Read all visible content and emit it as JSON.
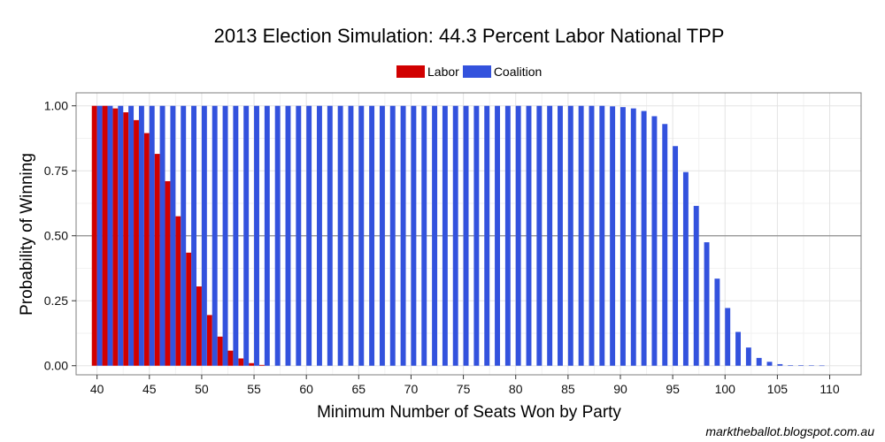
{
  "chart_data": {
    "type": "bar",
    "title": "2013 Election Simulation: 44.3 Percent Labor National TPP",
    "xlabel": "Minimum Number of Seats Won by Party",
    "ylabel": "Probability of Winning",
    "xlim": [
      38,
      113
    ],
    "ylim": [
      -0.035,
      1.05
    ],
    "x_ticks": [
      40,
      45,
      50,
      55,
      60,
      65,
      70,
      75,
      80,
      85,
      90,
      95,
      100,
      105,
      110
    ],
    "x_tick_labels": [
      "40",
      "45",
      "50",
      "55",
      "60",
      "65",
      "70",
      "75",
      "80",
      "85",
      "90",
      "95",
      "100",
      "105",
      "110"
    ],
    "y_ticks": [
      0,
      0.25,
      0.5,
      0.75,
      1.0
    ],
    "y_tick_labels": [
      "0.00",
      "0.25",
      "0.50",
      "0.75",
      "1.00"
    ],
    "reference_line_y": 0.5,
    "grid": true,
    "legend_position": "top",
    "series": [
      {
        "name": "Labor",
        "color": "#d10000",
        "x": [
          40,
          41,
          42,
          43,
          44,
          45,
          46,
          47,
          48,
          49,
          50,
          51,
          52,
          53,
          54,
          55,
          56
        ],
        "values": [
          1.0,
          1.0,
          0.99,
          0.975,
          0.945,
          0.895,
          0.815,
          0.71,
          0.575,
          0.435,
          0.305,
          0.195,
          0.112,
          0.058,
          0.028,
          0.01,
          0.003
        ]
      },
      {
        "name": "Coalition",
        "color": "#3352dd",
        "x": [
          40,
          41,
          42,
          43,
          44,
          45,
          46,
          47,
          48,
          49,
          50,
          51,
          52,
          53,
          54,
          55,
          56,
          57,
          58,
          59,
          60,
          61,
          62,
          63,
          64,
          65,
          66,
          67,
          68,
          69,
          70,
          71,
          72,
          73,
          74,
          75,
          76,
          77,
          78,
          79,
          80,
          81,
          82,
          83,
          84,
          85,
          86,
          87,
          88,
          89,
          90,
          91,
          92,
          93,
          94,
          95,
          96,
          97,
          98,
          99,
          100,
          101,
          102,
          103,
          104,
          105,
          106,
          107,
          108,
          109
        ],
        "values": [
          1.0,
          1.0,
          1.0,
          1.0,
          1.0,
          1.0,
          1.0,
          1.0,
          1.0,
          1.0,
          1.0,
          1.0,
          1.0,
          1.0,
          1.0,
          1.0,
          1.0,
          1.0,
          1.0,
          1.0,
          1.0,
          1.0,
          1.0,
          1.0,
          1.0,
          1.0,
          1.0,
          1.0,
          1.0,
          1.0,
          1.0,
          1.0,
          1.0,
          1.0,
          1.0,
          1.0,
          1.0,
          1.0,
          1.0,
          1.0,
          1.0,
          1.0,
          1.0,
          1.0,
          1.0,
          1.0,
          1.0,
          1.0,
          1.0,
          0.998,
          0.995,
          0.99,
          0.98,
          0.96,
          0.93,
          0.845,
          0.745,
          0.615,
          0.475,
          0.335,
          0.222,
          0.13,
          0.07,
          0.03,
          0.015,
          0.006,
          0.002,
          0.002,
          0.001,
          0.0005
        ]
      }
    ]
  },
  "credit": "marktheballot.blogspot.com.au"
}
